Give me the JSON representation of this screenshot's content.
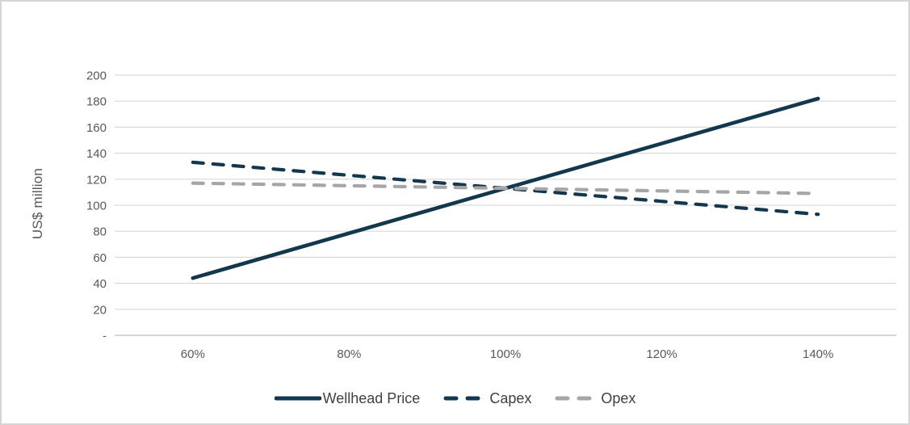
{
  "frame": {
    "background": "#ffffff",
    "border_color": "#d5d5d5"
  },
  "chart_data": {
    "type": "line",
    "title": "",
    "xlabel": "",
    "ylabel": "US$ million",
    "categories": [
      "60%",
      "80%",
      "100%",
      "120%",
      "140%"
    ],
    "series": [
      {
        "name": "Wellhead Price",
        "values": [
          44,
          78.5,
          113,
          147.5,
          182
        ],
        "color": "#13384d",
        "style": "solid"
      },
      {
        "name": "Capex",
        "values": [
          133,
          123,
          113,
          103,
          93
        ],
        "color": "#13384d",
        "style": "dashed"
      },
      {
        "name": "Opex",
        "values": [
          117,
          115,
          113,
          111,
          109
        ],
        "color": "#a6a6a6",
        "style": "dashed"
      }
    ],
    "ylim": [
      0,
      200
    ],
    "ytick_step": 20,
    "ytick_labels": [
      "-",
      "20",
      "40",
      "60",
      "80",
      "100",
      "120",
      "140",
      "160",
      "180",
      "200"
    ],
    "grid": true,
    "legend_position": "bottom",
    "colors": {
      "gridline": "#d9d9d9",
      "axis_line": "#c9c9c9",
      "tick_text": "#595959",
      "legend_text": "#404040"
    }
  }
}
